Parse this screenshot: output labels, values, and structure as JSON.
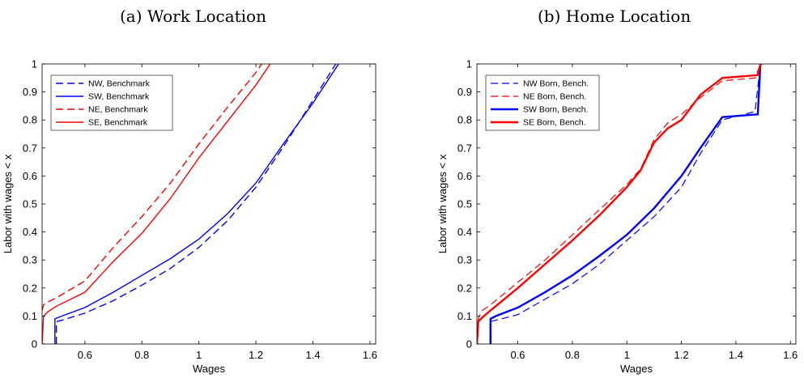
{
  "chart_data": [
    {
      "type": "line",
      "title": "(a) Work Location",
      "xlabel": "Wages",
      "ylabel": "Labor with wages < x",
      "xlim": [
        0.45,
        1.62
      ],
      "ylim": [
        0,
        1
      ],
      "xticks": [
        "0.6",
        "0.8",
        "1",
        "1.2",
        "1.4",
        "1.6"
      ],
      "yticks": [
        "0",
        "0.1",
        "0.2",
        "0.3",
        "0.4",
        "0.5",
        "0.6",
        "0.7",
        "0.8",
        "0.9",
        "1"
      ],
      "legend_position": "top-left",
      "series": [
        {
          "name": "NW, Benchmark",
          "color": "#0000ff",
          "dash": "dashed",
          "x": [
            0.5,
            0.5,
            0.52,
            0.6,
            0.7,
            0.8,
            0.9,
            1.0,
            1.1,
            1.2,
            1.3,
            1.4,
            1.48
          ],
          "y": [
            0,
            0.08,
            0.085,
            0.11,
            0.155,
            0.21,
            0.27,
            0.345,
            0.44,
            0.56,
            0.71,
            0.87,
            1.0
          ]
        },
        {
          "name": "SW, Benchmark",
          "color": "#0000ff",
          "dash": "solid",
          "x": [
            0.495,
            0.495,
            0.52,
            0.6,
            0.7,
            0.8,
            0.9,
            1.0,
            1.1,
            1.2,
            1.3,
            1.4,
            1.49
          ],
          "y": [
            0,
            0.09,
            0.1,
            0.13,
            0.185,
            0.245,
            0.305,
            0.375,
            0.465,
            0.575,
            0.72,
            0.86,
            1.0
          ]
        },
        {
          "name": "NE, Benchmark",
          "color": "#ff0000",
          "dash": "dashed",
          "x": [
            0.45,
            0.455,
            0.47,
            0.5,
            0.6,
            0.7,
            0.8,
            0.9,
            1.0,
            1.1,
            1.2,
            1.22
          ],
          "y": [
            0.12,
            0.14,
            0.15,
            0.165,
            0.225,
            0.345,
            0.455,
            0.575,
            0.715,
            0.845,
            0.97,
            1.0
          ]
        },
        {
          "name": "SE, Benchmark",
          "color": "#ff0000",
          "dash": "solid",
          "x": [
            0.45,
            0.455,
            0.47,
            0.5,
            0.6,
            0.7,
            0.8,
            0.9,
            1.0,
            1.1,
            1.2,
            1.25
          ],
          "y": [
            0,
            0.1,
            0.115,
            0.135,
            0.185,
            0.295,
            0.395,
            0.52,
            0.665,
            0.795,
            0.925,
            1.0
          ]
        }
      ]
    },
    {
      "type": "line",
      "title": "(b) Home Location",
      "xlabel": "Wages",
      "ylabel": "Labor with wages < x",
      "xlim": [
        0.45,
        1.62
      ],
      "ylim": [
        0,
        1
      ],
      "xticks": [
        "0.6",
        "0.8",
        "1",
        "1.2",
        "1.4",
        "1.6"
      ],
      "yticks": [
        "0",
        "0.1",
        "0.2",
        "0.3",
        "0.4",
        "0.5",
        "0.6",
        "0.7",
        "0.8",
        "0.9",
        "1"
      ],
      "legend_position": "top-left",
      "series": [
        {
          "name": "NW Born, Bench.",
          "color": "#0000ff",
          "dash": "dashed",
          "width": 1.2,
          "x": [
            0.5,
            0.5,
            0.52,
            0.6,
            0.7,
            0.8,
            0.9,
            1.0,
            1.1,
            1.2,
            1.27,
            1.35,
            1.47,
            1.49,
            1.5
          ],
          "y": [
            0,
            0.08,
            0.085,
            0.105,
            0.16,
            0.215,
            0.285,
            0.37,
            0.455,
            0.56,
            0.68,
            0.8,
            0.83,
            1.0,
            1.0
          ]
        },
        {
          "name": "NE Born, Bench.",
          "color": "#ff0000",
          "dash": "dashed",
          "width": 1.2,
          "x": [
            0.45,
            0.455,
            0.47,
            0.5,
            0.6,
            0.7,
            0.8,
            0.9,
            1.0,
            1.05,
            1.1,
            1.15,
            1.2,
            1.27,
            1.35,
            1.47,
            1.49
          ],
          "y": [
            0,
            0.09,
            0.12,
            0.14,
            0.22,
            0.3,
            0.39,
            0.48,
            0.57,
            0.625,
            0.73,
            0.79,
            0.82,
            0.88,
            0.94,
            0.95,
            1.0
          ]
        },
        {
          "name": "SW Born, Bench.",
          "color": "#0000ff",
          "dash": "solid",
          "width": 2.4,
          "x": [
            0.5,
            0.5,
            0.52,
            0.6,
            0.7,
            0.8,
            0.9,
            1.0,
            1.1,
            1.2,
            1.27,
            1.35,
            1.48,
            1.49
          ],
          "y": [
            0,
            0.09,
            0.1,
            0.13,
            0.185,
            0.245,
            0.315,
            0.39,
            0.485,
            0.6,
            0.7,
            0.81,
            0.82,
            1.0
          ]
        },
        {
          "name": "SE Born, Bench.",
          "color": "#ff0000",
          "dash": "solid",
          "width": 2.4,
          "x": [
            0.45,
            0.455,
            0.47,
            0.5,
            0.6,
            0.7,
            0.8,
            0.9,
            1.0,
            1.05,
            1.1,
            1.15,
            1.2,
            1.27,
            1.35,
            1.48,
            1.49
          ],
          "y": [
            0,
            0.08,
            0.095,
            0.12,
            0.2,
            0.285,
            0.37,
            0.46,
            0.56,
            0.62,
            0.72,
            0.77,
            0.8,
            0.89,
            0.95,
            0.96,
            1.0
          ]
        }
      ]
    }
  ]
}
